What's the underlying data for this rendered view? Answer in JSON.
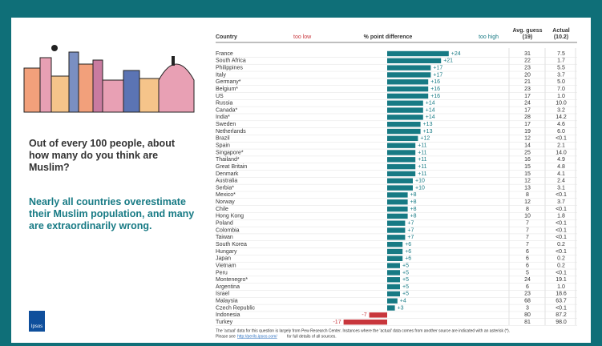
{
  "chart_data": {
    "type": "hbar",
    "country_header": "Country",
    "title": "% point difference",
    "low_label": "too low",
    "high_label": "too high",
    "categories": [
      "France",
      "South Africa",
      "Philippines",
      "Italy",
      "Germany*",
      "Belgium*",
      "US",
      "Russia",
      "Canada*",
      "India*",
      "Sweden",
      "Netherlands",
      "Brazil",
      "Spain",
      "Singapore*",
      "Thailand*",
      "Great Britain",
      "Denmark",
      "Australia",
      "Serbia*",
      "Mexico*",
      "Norway",
      "Chile",
      "Hong Kong",
      "Poland",
      "Colombia",
      "Taiwan",
      "South Korea",
      "Hungary",
      "Japan",
      "Vietnam",
      "Peru",
      "Montenegro*",
      "Argentina",
      "Israel",
      "Malaysia",
      "Czech Republic",
      "Indonesia",
      "Turkey"
    ],
    "values": [
      24,
      21,
      17,
      17,
      16,
      16,
      16,
      14,
      14,
      14,
      13,
      13,
      12,
      11,
      11,
      11,
      11,
      11,
      10,
      10,
      8,
      8,
      8,
      8,
      7,
      7,
      7,
      6,
      6,
      6,
      5,
      5,
      5,
      5,
      5,
      4,
      3,
      -7,
      -17
    ],
    "value_labels": [
      "+24",
      "+21",
      "+17",
      "+17",
      "+16",
      "+16",
      "+16",
      "+14",
      "+14",
      "+14",
      "+13",
      "+13",
      "+12",
      "+11",
      "+11",
      "+11",
      "+11",
      "+11",
      "+10",
      "+10",
      "+8",
      "+8",
      "+8",
      "+8",
      "+7",
      "+7",
      "+7",
      "+6",
      "+6",
      "+6",
      "+5",
      "+5",
      "+5",
      "+5",
      "+5",
      "+4",
      "+3",
      "-7",
      "-17"
    ],
    "color": "#177a84",
    "negative_color": "#c8363c",
    "columns": [
      {
        "name": [
          "Avg. guess",
          "(19)"
        ],
        "values": [
          31,
          22,
          23,
          20,
          21,
          23,
          17,
          24,
          17,
          28,
          17,
          19,
          12,
          14,
          25,
          16,
          15,
          15,
          12,
          13,
          8,
          12,
          8,
          10,
          7,
          7,
          7,
          7,
          6,
          6,
          6,
          5,
          24,
          6,
          23,
          68,
          3,
          80,
          81
        ]
      },
      {
        "name": [
          "Actual",
          "(10.2)"
        ],
        "values": [
          "7.5",
          "1.7",
          "5.5",
          "3.7",
          "5.0",
          "7.0",
          "1.0",
          "10.0",
          "3.2",
          "14.2",
          "4.6",
          "6.0",
          "<0.1",
          "2.1",
          "14.0",
          "4.9",
          "4.8",
          "4.1",
          "2.4",
          "3.1",
          "<0.1",
          "3.7",
          "<0.1",
          "1.8",
          "<0.1",
          "<0.1",
          "<0.1",
          "0.2",
          "<0.1",
          "0.2",
          "0.2",
          "<0.1",
          "19.1",
          "1.0",
          "18.6",
          "63.7",
          "<0.1",
          "87.2",
          "98.0"
        ]
      }
    ]
  },
  "question": "Out of every 100 people, about how many do you think are Muslim?",
  "answer": "Nearly all countries overestimate their Muslim population, and many are extraordinarily wrong.",
  "footnote": [
    "The 'actual' data for this question is largely from Pew Research Center. Instances where the 'actual' data comes from another source are indicated with an asterisk (*).",
    "Please see",
    "http://perils.ipsos.com/",
    "for full details of all sources."
  ],
  "logo": "Ipsos"
}
